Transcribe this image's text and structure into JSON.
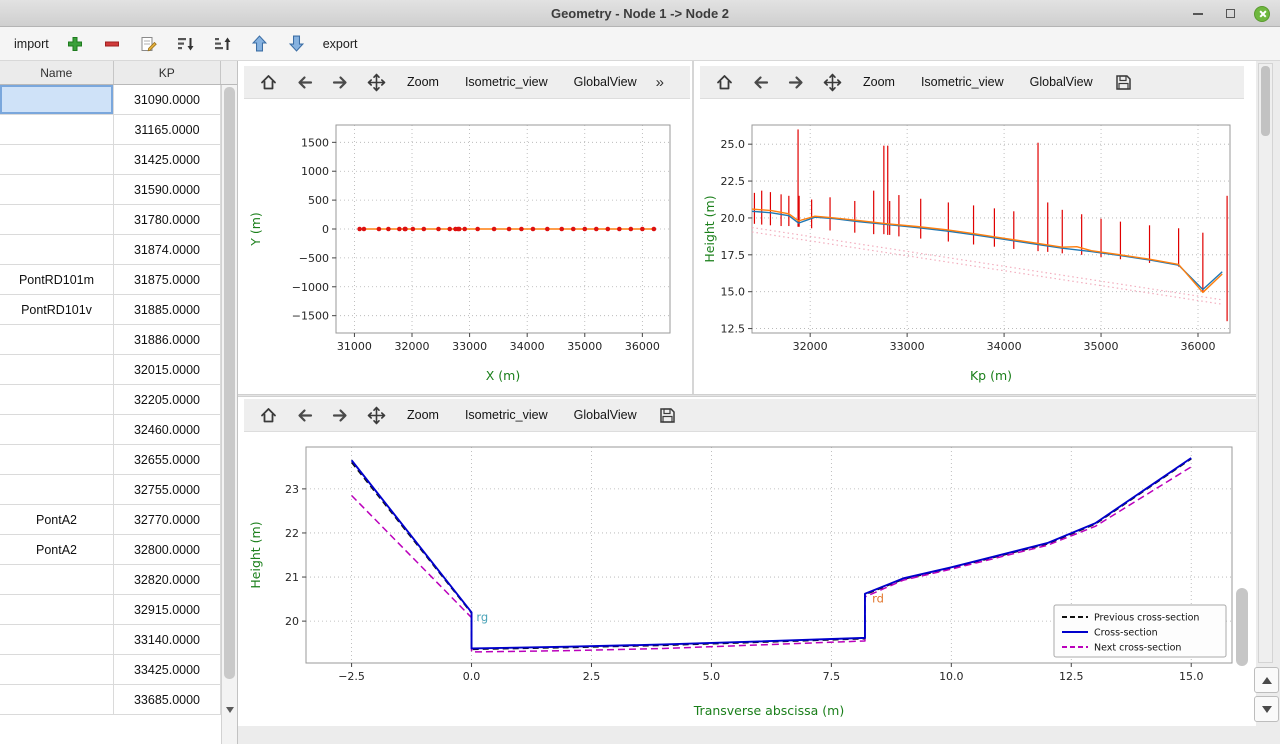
{
  "window": {
    "title": "Geometry - Node 1 -> Node 2"
  },
  "toolbar": {
    "import_label": "import",
    "export_label": "export"
  },
  "plot_toolbar": {
    "zoom": "Zoom",
    "isometric": "Isometric_view",
    "globalview": "GlobalView",
    "more": "»"
  },
  "table": {
    "columns": [
      "Name",
      "KP"
    ],
    "rows": [
      {
        "name": "",
        "kp": "31090.0000"
      },
      {
        "name": "",
        "kp": "31165.0000"
      },
      {
        "name": "",
        "kp": "31425.0000"
      },
      {
        "name": "",
        "kp": "31590.0000"
      },
      {
        "name": "",
        "kp": "31780.0000"
      },
      {
        "name": "",
        "kp": "31874.0000"
      },
      {
        "name": "PontRD101m",
        "kp": "31875.0000"
      },
      {
        "name": "PontRD101v",
        "kp": "31885.0000"
      },
      {
        "name": "",
        "kp": "31886.0000"
      },
      {
        "name": "",
        "kp": "32015.0000"
      },
      {
        "name": "",
        "kp": "32205.0000"
      },
      {
        "name": "",
        "kp": "32460.0000"
      },
      {
        "name": "",
        "kp": "32655.0000"
      },
      {
        "name": "",
        "kp": "32755.0000"
      },
      {
        "name": "PontA2",
        "kp": "32770.0000"
      },
      {
        "name": "PontA2",
        "kp": "32800.0000"
      },
      {
        "name": "",
        "kp": "32820.0000"
      },
      {
        "name": "",
        "kp": "32915.0000"
      },
      {
        "name": "",
        "kp": "33140.0000"
      },
      {
        "name": "",
        "kp": "33425.0000"
      },
      {
        "name": "",
        "kp": "33685.0000"
      }
    ]
  },
  "chart_data": [
    {
      "type": "line",
      "title": "",
      "xlabel": "X (m)",
      "ylabel": "Y (m)",
      "label_color": "#1a7f1a",
      "xlim": [
        30680,
        36480
      ],
      "ylim": [
        -1800,
        1800
      ],
      "xticks": [
        31000,
        32000,
        33000,
        34000,
        35000,
        36000
      ],
      "yticks": [
        -1500,
        -1000,
        -500,
        0,
        500,
        1000,
        1500
      ],
      "xtickdec": 0,
      "ytickdec": 0,
      "series": [
        {
          "name": "river-axis",
          "type": "line",
          "color": "#ff7f0e",
          "width": 1.4,
          "x": [
            31090,
            31165,
            31425,
            31590,
            31780,
            31875,
            31886,
            32015,
            32205,
            32460,
            32655,
            32755,
            32800,
            32820,
            32915,
            33140,
            33425,
            33685,
            33900,
            34100,
            34350,
            34600,
            34800,
            35000,
            35200,
            35400,
            35600,
            35800,
            36000,
            36200
          ],
          "y": [
            0,
            0,
            0,
            0,
            0,
            0,
            0,
            0,
            0,
            0,
            0,
            0,
            0,
            0,
            0,
            0,
            0,
            0,
            0,
            0,
            0,
            0,
            0,
            0,
            0,
            0,
            0,
            0,
            0,
            0
          ]
        },
        {
          "name": "cross-section-points",
          "type": "scatter",
          "color": "#dd1111",
          "r": 2.3,
          "x": [
            31090,
            31165,
            31425,
            31590,
            31780,
            31875,
            31886,
            32015,
            32205,
            32460,
            32655,
            32755,
            32800,
            32820,
            32915,
            33140,
            33425,
            33685,
            33900,
            34100,
            34350,
            34600,
            34800,
            35000,
            35200,
            35400,
            35600,
            35800,
            36000,
            36200
          ],
          "y": [
            0,
            0,
            0,
            0,
            0,
            0,
            0,
            0,
            0,
            0,
            0,
            0,
            0,
            0,
            0,
            0,
            0,
            0,
            0,
            0,
            0,
            0,
            0,
            0,
            0,
            0,
            0,
            0,
            0,
            0
          ]
        }
      ]
    },
    {
      "type": "line",
      "title": "",
      "xlabel": "Kp (m)",
      "ylabel": "Height (m)",
      "label_color": "#1a7f1a",
      "xlim": [
        31400,
        36330
      ],
      "ylim": [
        12.2,
        26.3
      ],
      "xticks": [
        32000,
        33000,
        34000,
        35000,
        36000
      ],
      "yticks": [
        12.5,
        15.0,
        17.5,
        20.0,
        22.5,
        25.0
      ],
      "xtickdec": 0,
      "ytickdec": 1,
      "series": [
        {
          "name": "bottom-guide-1",
          "type": "line",
          "color": "#f2aebe",
          "width": 1.2,
          "dash": "1.5,3",
          "x": [
            31400,
            36250
          ],
          "y": [
            19.35,
            14.45
          ]
        },
        {
          "name": "bottom-guide-2",
          "type": "line",
          "color": "#f2aebe",
          "width": 1.2,
          "dash": "1.5,3",
          "x": [
            31400,
            36250
          ],
          "y": [
            19.05,
            14.15
          ]
        },
        {
          "name": "cross-section-extents",
          "type": "vlines",
          "color": "#e00000",
          "width": 1.2,
          "lines": [
            [
              31425,
              19.6,
              21.7
            ],
            [
              31500,
              19.55,
              21.85
            ],
            [
              31590,
              19.5,
              21.75
            ],
            [
              31700,
              19.45,
              21.6
            ],
            [
              31780,
              19.45,
              21.5
            ],
            [
              31875,
              19.4,
              26.0
            ],
            [
              31886,
              19.4,
              21.5
            ],
            [
              32015,
              19.3,
              21.25
            ],
            [
              32205,
              19.15,
              21.4
            ],
            [
              32460,
              19.0,
              21.15
            ],
            [
              32655,
              18.9,
              21.85
            ],
            [
              32760,
              18.9,
              24.9
            ],
            [
              32800,
              18.85,
              24.9
            ],
            [
              32820,
              18.85,
              21.15
            ],
            [
              32915,
              18.75,
              21.55
            ],
            [
              33140,
              18.6,
              21.3
            ],
            [
              33425,
              18.4,
              21.05
            ],
            [
              33685,
              18.2,
              20.85
            ],
            [
              33900,
              18.05,
              20.65
            ],
            [
              34100,
              17.9,
              20.45
            ],
            [
              34350,
              17.75,
              25.1
            ],
            [
              34450,
              17.7,
              21.05
            ],
            [
              34600,
              17.6,
              20.55
            ],
            [
              34800,
              17.5,
              20.25
            ],
            [
              35000,
              17.35,
              19.95
            ],
            [
              35200,
              17.2,
              19.75
            ],
            [
              35500,
              16.95,
              19.5
            ],
            [
              35800,
              16.7,
              19.3
            ],
            [
              36050,
              15.0,
              19.0
            ],
            [
              36300,
              13.0,
              21.5
            ]
          ]
        },
        {
          "name": "left-bank",
          "type": "line",
          "color": "#1f77b4",
          "width": 1.4,
          "x": [
            31400,
            31600,
            31780,
            31880,
            32050,
            32250,
            32500,
            32800,
            33100,
            33400,
            33700,
            34000,
            34300,
            34600,
            34900,
            35200,
            35500,
            35800,
            36050,
            36250
          ],
          "y": [
            20.45,
            20.35,
            20.15,
            19.65,
            20.05,
            19.95,
            19.75,
            19.55,
            19.35,
            19.12,
            18.85,
            18.55,
            18.25,
            17.95,
            17.72,
            17.45,
            17.15,
            16.8,
            15.15,
            16.35
          ]
        },
        {
          "name": "right-bank",
          "type": "line",
          "color": "#ff7f0e",
          "width": 1.4,
          "x": [
            31400,
            31600,
            31780,
            31880,
            32050,
            32250,
            32500,
            32800,
            33100,
            33400,
            33700,
            34000,
            34300,
            34600,
            34750,
            34900,
            35200,
            35500,
            35800,
            36050,
            36250
          ],
          "y": [
            20.6,
            20.5,
            20.28,
            19.8,
            20.12,
            20.0,
            19.82,
            19.6,
            19.42,
            19.2,
            18.92,
            18.62,
            18.32,
            18.02,
            18.05,
            17.78,
            17.5,
            17.2,
            16.85,
            14.95,
            16.2
          ]
        }
      ]
    },
    {
      "type": "line",
      "title": "",
      "xlabel": "Transverse abscissa (m)",
      "ylabel": "Height (m)",
      "label_color": "#1a7f1a",
      "xlim": [
        -3.45,
        15.85
      ],
      "ylim": [
        19.05,
        23.95
      ],
      "xticks": [
        -2.5,
        0.0,
        2.5,
        5.0,
        7.5,
        10.0,
        12.5,
        15.0
      ],
      "yticks": [
        20,
        21,
        22,
        23
      ],
      "xtickdec": 1,
      "ytickdec": 0,
      "legend": [
        {
          "label": "Previous cross-section",
          "color": "#111111",
          "dash": true
        },
        {
          "label": "Cross-section",
          "color": "#0000cc",
          "dash": false
        },
        {
          "label": "Next cross-section",
          "color": "#bb00bb",
          "dash": true
        }
      ],
      "annotations": [
        {
          "text": "rg",
          "x": 0.1,
          "y": 20.0,
          "color": "#4aa3b8"
        },
        {
          "text": "rd",
          "x": 8.35,
          "y": 20.42,
          "color": "#e2772e"
        }
      ],
      "series": [
        {
          "name": "previous-cross-section",
          "type": "line",
          "color": "#111111",
          "width": 1.5,
          "dash": "6,4",
          "x": [
            -2.5,
            0,
            0,
            2,
            4,
            6,
            8.2,
            8.2,
            9,
            10,
            12,
            13,
            15
          ],
          "y": [
            23.6,
            20.18,
            19.36,
            19.4,
            19.45,
            19.52,
            19.6,
            20.6,
            20.95,
            21.2,
            21.75,
            22.2,
            23.68
          ]
        },
        {
          "name": "next-cross-section",
          "type": "line",
          "color": "#bb00bb",
          "width": 1.5,
          "dash": "7,4",
          "x": [
            -2.5,
            0,
            0,
            2,
            4,
            6,
            8.2,
            8.2,
            9,
            10,
            12,
            13,
            15
          ],
          "y": [
            22.85,
            20.08,
            19.3,
            19.33,
            19.38,
            19.46,
            19.55,
            20.55,
            20.93,
            21.18,
            21.72,
            22.15,
            23.5
          ]
        },
        {
          "name": "current-cross-section",
          "type": "line",
          "color": "#0000cc",
          "width": 1.9,
          "x": [
            -2.5,
            0,
            0,
            2,
            4,
            6,
            8.2,
            8.2,
            9,
            10,
            12,
            13,
            15
          ],
          "y": [
            23.65,
            20.2,
            19.38,
            19.42,
            19.47,
            19.54,
            19.62,
            20.62,
            20.97,
            21.22,
            21.77,
            22.22,
            23.7
          ]
        }
      ]
    }
  ]
}
